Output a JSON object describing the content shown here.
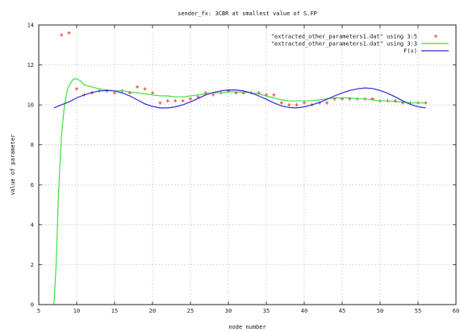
{
  "chart_data": {
    "type": "line",
    "title": "sender_fx: 3CBR at smallest value of S.FP",
    "xlabel": "node number",
    "ylabel": "value of parameter",
    "xlim": [
      5,
      60
    ],
    "ylim": [
      0,
      14
    ],
    "xticks": [
      5,
      10,
      15,
      20,
      25,
      30,
      35,
      40,
      45,
      50,
      55,
      60
    ],
    "yticks": [
      0,
      2,
      4,
      6,
      8,
      10,
      12,
      14
    ],
    "grid": true,
    "legend_position": "top-right",
    "series": [
      {
        "name": "\"extracted_other_parameters1.dat\" using 3:5",
        "style": "points",
        "color": "#e8463a",
        "x": [
          8,
          9,
          10,
          11,
          12,
          13,
          14,
          15,
          16,
          17,
          18,
          19,
          20,
          21,
          22,
          23,
          24,
          25,
          26,
          27,
          28,
          29,
          30,
          31,
          32,
          33,
          34,
          35,
          36,
          37,
          38,
          39,
          40,
          41,
          42,
          43,
          44,
          45,
          46,
          47,
          48,
          49,
          50,
          51,
          52,
          53,
          54,
          55,
          56
        ],
        "y": [
          13.5,
          13.6,
          10.8,
          10.5,
          10.6,
          10.7,
          10.7,
          10.6,
          10.7,
          10.6,
          10.9,
          10.8,
          10.6,
          10.1,
          10.2,
          10.2,
          10.2,
          10.3,
          10.4,
          10.6,
          10.5,
          10.6,
          10.7,
          10.6,
          10.6,
          10.6,
          10.6,
          10.5,
          10.5,
          10.1,
          10.0,
          10.0,
          10.1,
          10.0,
          10.1,
          10.1,
          10.3,
          10.3,
          10.3,
          10.3,
          10.3,
          10.3,
          10.2,
          10.2,
          10.2,
          10.1,
          10.1,
          10.1,
          10.1
        ]
      },
      {
        "name": "\"extracted_other_parameters1.dat\" using 3:3",
        "style": "line",
        "color": "#3ee03e",
        "x": [
          7,
          7.3,
          7.6,
          8,
          8.4,
          8.8,
          9.2,
          9.6,
          10,
          10.5,
          11,
          12,
          13,
          14,
          15,
          16,
          17,
          18,
          19,
          20,
          21,
          22,
          23,
          24,
          25,
          26,
          27,
          28,
          29,
          30,
          31,
          32,
          33,
          34,
          35,
          36,
          37,
          38,
          39,
          40,
          41,
          42,
          43,
          44,
          45,
          46,
          47,
          48,
          49,
          50,
          51,
          52,
          53,
          54,
          55,
          56
        ],
        "y": [
          0,
          2,
          5.5,
          8.5,
          10.0,
          10.8,
          11.1,
          11.3,
          11.3,
          11.2,
          11.0,
          10.9,
          10.8,
          10.75,
          10.7,
          10.7,
          10.65,
          10.6,
          10.55,
          10.5,
          10.45,
          10.45,
          10.4,
          10.4,
          10.45,
          10.5,
          10.55,
          10.6,
          10.6,
          10.65,
          10.65,
          10.65,
          10.6,
          10.55,
          10.45,
          10.35,
          10.25,
          10.2,
          10.2,
          10.2,
          10.2,
          10.25,
          10.3,
          10.35,
          10.35,
          10.35,
          10.3,
          10.3,
          10.25,
          10.2,
          10.2,
          10.15,
          10.15,
          10.1,
          10.1,
          10.1
        ]
      },
      {
        "name": "F(x)",
        "style": "line",
        "color": "#2a2ad8",
        "x": [
          7,
          8,
          9,
          10,
          11,
          12,
          13,
          14,
          15,
          16,
          17,
          18,
          19,
          20,
          21,
          22,
          23,
          24,
          25,
          26,
          27,
          28,
          29,
          30,
          31,
          32,
          33,
          34,
          35,
          36,
          37,
          38,
          39,
          40,
          41,
          42,
          43,
          44,
          45,
          46,
          47,
          48,
          49,
          50,
          51,
          52,
          53,
          54,
          55,
          56
        ],
        "y": [
          9.85,
          10.0,
          10.15,
          10.35,
          10.5,
          10.62,
          10.7,
          10.72,
          10.7,
          10.6,
          10.45,
          10.25,
          10.05,
          9.92,
          9.85,
          9.85,
          9.9,
          10.0,
          10.15,
          10.32,
          10.5,
          10.62,
          10.7,
          10.75,
          10.75,
          10.7,
          10.6,
          10.45,
          10.28,
          10.1,
          9.95,
          9.87,
          9.85,
          9.9,
          10.0,
          10.12,
          10.28,
          10.45,
          10.6,
          10.72,
          10.8,
          10.85,
          10.82,
          10.72,
          10.58,
          10.4,
          10.2,
          10.02,
          9.9,
          9.85
        ]
      }
    ]
  }
}
